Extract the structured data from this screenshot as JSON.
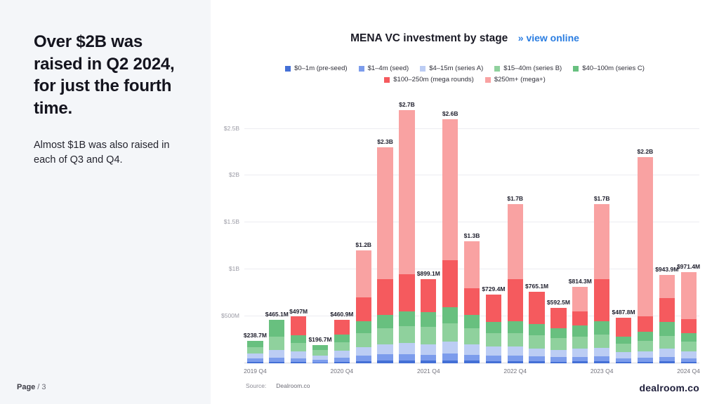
{
  "sidebar": {
    "headline": "Over $2B was raised in Q2 2024, for just the fourth time.",
    "subtext": "Almost $1B was also raised in each of Q3 and Q4.",
    "page_word": "Page",
    "page_number": "/ 3"
  },
  "header": {
    "title": "MENA VC investment by stage",
    "link": "» view online"
  },
  "source": {
    "label": "Source:",
    "value": "Dealroom.co"
  },
  "brand": "dealroom.co",
  "chart_data": {
    "type": "bar",
    "stacked": true,
    "title": "MENA VC investment by stage",
    "unit": "$M",
    "ylim": [
      0,
      2750
    ],
    "grid": true,
    "legend_position": "top",
    "categories": [
      "2019 Q4",
      "2020 Q1",
      "2020 Q2",
      "2020 Q3",
      "2020 Q4",
      "2021 Q1",
      "2021 Q2",
      "2021 Q3",
      "2021 Q4",
      "2022 Q1",
      "2022 Q2",
      "2022 Q3",
      "2022 Q4",
      "2023 Q1",
      "2023 Q2",
      "2023 Q3",
      "2023 Q4",
      "2024 Q1",
      "2024 Q2",
      "2024 Q3",
      "2024 Q4"
    ],
    "x_tick_labels": [
      "2019 Q4",
      "2020 Q4",
      "2021 Q4",
      "2022 Q4",
      "2023 Q4",
      "2024 Q4"
    ],
    "x_tick_indices": [
      0,
      4,
      8,
      12,
      16,
      20
    ],
    "y_ticks": [
      {
        "label": "$500M",
        "value": 500
      },
      {
        "label": "$1B",
        "value": 1000
      },
      {
        "label": "$1.5B",
        "value": 1500
      },
      {
        "label": "$2B",
        "value": 2000
      },
      {
        "label": "$2.5B",
        "value": 2500
      }
    ],
    "bar_labels": [
      "$238.7M",
      "$465.1M",
      "$497M",
      "$196.7M",
      "$460.9M",
      "$1.2B",
      "$2.3B",
      "$2.7B",
      "$899.1M",
      "$2.6B",
      "$1.3B",
      "$729.4M",
      "$1.7B",
      "$765.1M",
      "$592.5M",
      "$814.3M",
      "$1.7B",
      "$487.8M",
      "$2.2B",
      "$943.9M",
      "$971.4M"
    ],
    "totals_musd": [
      238.7,
      465.1,
      497,
      196.7,
      460.9,
      1200,
      2300,
      2700,
      899.1,
      2600,
      1300,
      729.4,
      1700,
      765.1,
      592.5,
      814.3,
      1700,
      487.8,
      2200,
      943.9,
      971.4
    ],
    "legend_rows": [
      [
        0,
        1,
        2,
        3,
        4
      ],
      [
        5,
        6
      ]
    ],
    "series": [
      {
        "name": "$0–1m (pre-seed)",
        "color": "#4470d6",
        "values": [
          15,
          18,
          15,
          10,
          15,
          25,
          30,
          30,
          28,
          32,
          28,
          24,
          24,
          20,
          18,
          20,
          22,
          14,
          15,
          20,
          15
        ]
      },
      {
        "name": "$1–4m (seed)",
        "color": "#7c9cec",
        "values": [
          35,
          45,
          40,
          28,
          42,
          55,
          65,
          70,
          65,
          75,
          65,
          58,
          58,
          52,
          48,
          50,
          55,
          38,
          42,
          50,
          40
        ]
      },
      {
        "name": "$4–15m (series A)",
        "color": "#bccdf4",
        "values": [
          55,
          80,
          70,
          45,
          75,
          95,
          110,
          115,
          110,
          125,
          110,
          95,
          95,
          88,
          80,
          85,
          90,
          65,
          72,
          85,
          70
        ]
      },
      {
        "name": "$15–40m (series B)",
        "color": "#8fd19d",
        "values": [
          70,
          140,
          95,
          60,
          95,
          150,
          170,
          180,
          185,
          195,
          175,
          145,
          145,
          135,
          120,
          130,
          140,
          95,
          110,
          140,
          105
        ]
      },
      {
        "name": "$40–100m (series C)",
        "color": "#68c07f",
        "values": [
          63.7,
          182.1,
          77,
          53.7,
          83.9,
          125,
          145,
          155,
          161.1,
          173,
          142,
          117.4,
          128,
          120.1,
          106.5,
          119.3,
          143,
          75.8,
          96,
          148.9,
          91.4
        ]
      },
      {
        "name": "$100–250m (mega rounds)",
        "color": "#f55a5e",
        "values": [
          0,
          0,
          200,
          0,
          150,
          250,
          380,
          400,
          350,
          500,
          280,
          290,
          450,
          350,
          220,
          150,
          450,
          200,
          165,
          250,
          150
        ]
      },
      {
        "name": "$250m+ (mega+)",
        "color": "#f9a2a2",
        "values": [
          0,
          0,
          0,
          0,
          0,
          500,
          1400,
          1750,
          0,
          1500,
          500,
          0,
          800,
          0,
          0,
          260,
          800,
          0,
          1700,
          250,
          500
        ]
      }
    ]
  }
}
